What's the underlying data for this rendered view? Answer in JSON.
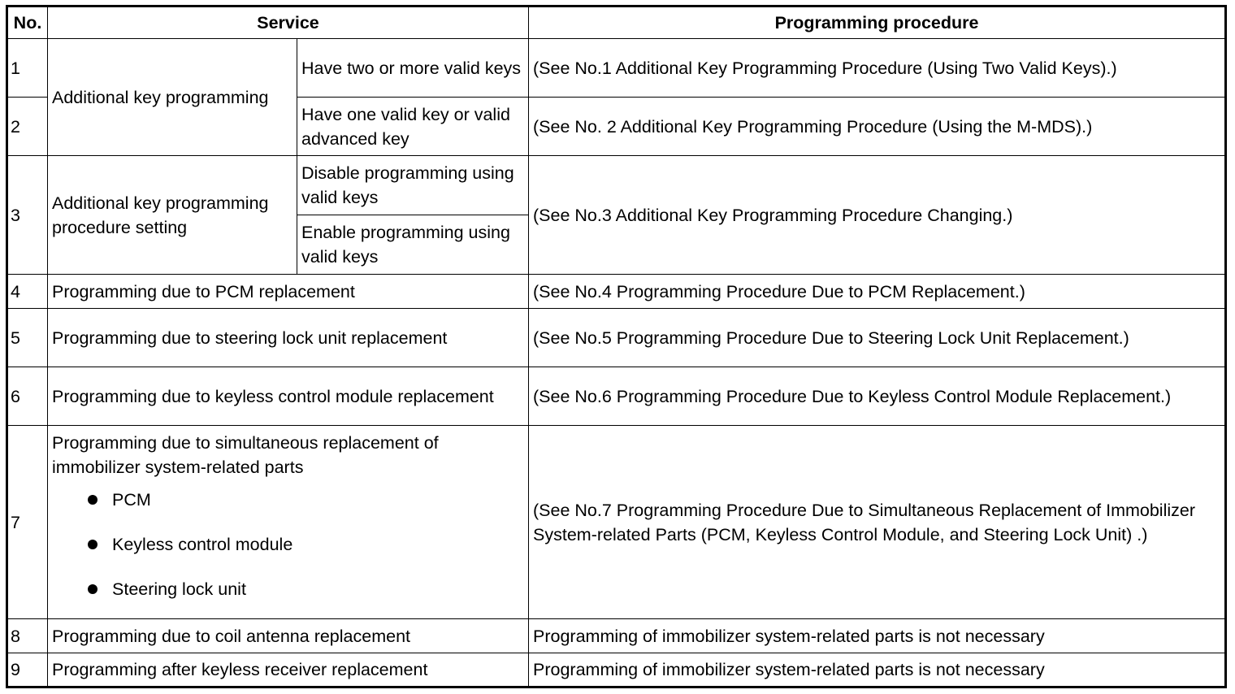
{
  "headers": {
    "no": "No.",
    "service": "Service",
    "procedure": "Programming procedure"
  },
  "rows": [
    {
      "no": "1",
      "service": "Additional key programming",
      "condition": "Have two or more valid keys",
      "procedure": "(See No.1 Additional Key Programming Procedure (Using Two Valid Keys).)"
    },
    {
      "no": "2",
      "condition": "Have one valid key or valid advanced key",
      "procedure": "(See No. 2 Additional Key Programming Procedure (Using the M-MDS).)"
    },
    {
      "no": "3",
      "service": "Additional key programming procedure setting",
      "condition": "Disable programming using valid keys",
      "condition2": "Enable programming using valid keys",
      "procedure": "(See No.3 Additional Key Programming Procedure Changing.)"
    },
    {
      "no": "4",
      "service": "Programming due to PCM replacement",
      "procedure": "(See No.4 Programming Procedure Due to PCM Replacement.)"
    },
    {
      "no": "5",
      "service": "Programming due to steering lock unit replacement",
      "procedure": "(See No.5 Programming Procedure Due to Steering Lock Unit Replacement.)"
    },
    {
      "no": "6",
      "service": "Programming due to keyless control module replacement",
      "procedure": "(See No.6 Programming Procedure Due to Keyless Control Module Replacement.)"
    },
    {
      "no": "7",
      "service": "Programming due to simultaneous replacement of immobilizer system-related parts",
      "bullets": [
        "PCM",
        "Keyless control module",
        "Steering lock unit"
      ],
      "procedure": "(See No.7 Programming Procedure Due to Simultaneous Replacement of Immobilizer System-related Parts (PCM, Keyless Control Module, and Steering Lock Unit) .)"
    },
    {
      "no": "8",
      "service": "Programming due to coil antenna replacement",
      "procedure": "Programming of immobilizer system-related parts is not necessary"
    },
    {
      "no": "9",
      "service": "Programming after keyless receiver replacement",
      "procedure": "Programming of immobilizer system-related parts is not necessary"
    }
  ]
}
